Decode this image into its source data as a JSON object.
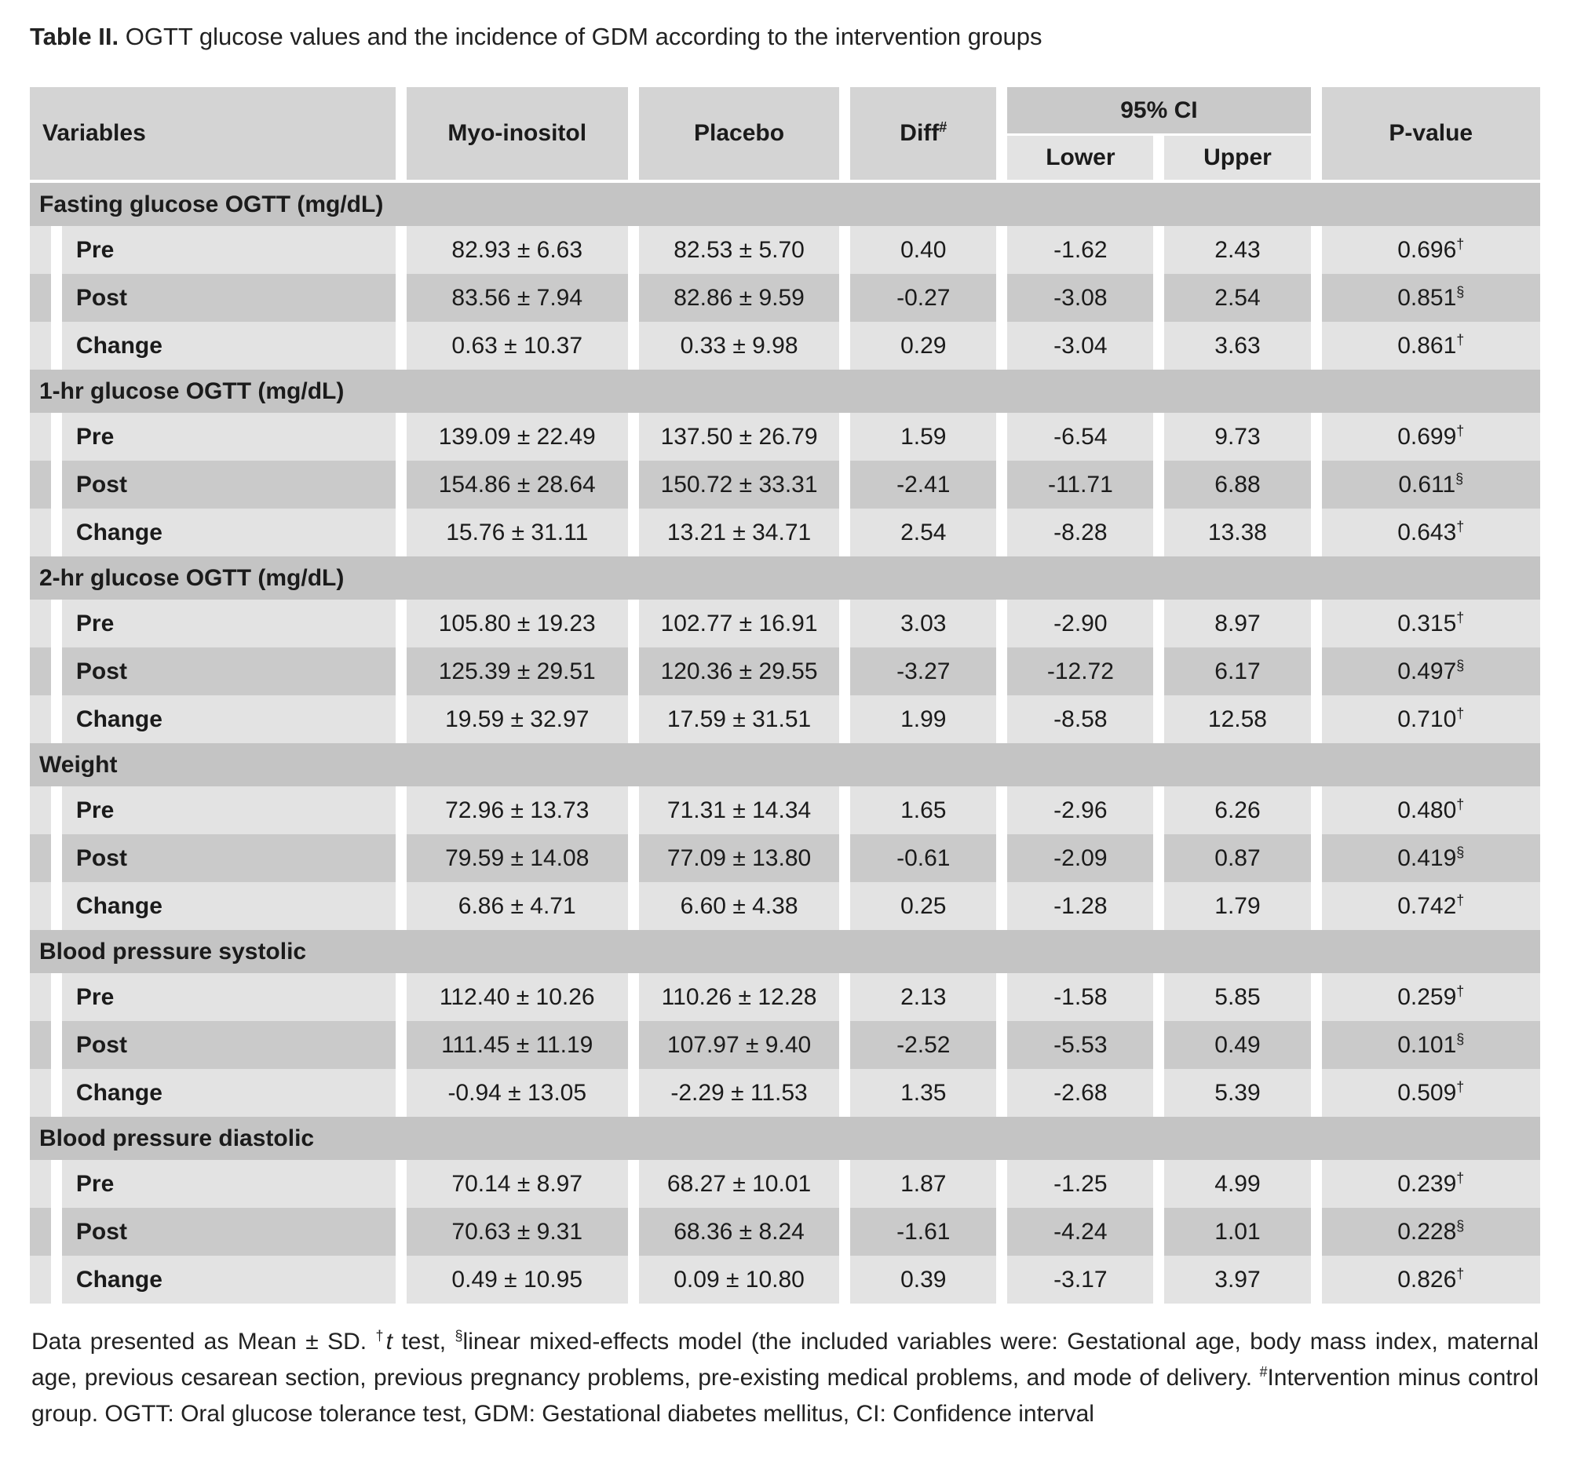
{
  "title": {
    "label": "Table II.",
    "text": " OGTT glucose values and the incidence of GDM according to the intervention groups"
  },
  "table": {
    "headers": {
      "variables": "Variables",
      "myo": "Myo-inositol",
      "placebo": "Placebo",
      "diff": "Diff",
      "diff_sup": "#",
      "ci": "95% CI",
      "lower": "Lower",
      "upper": "Upper",
      "pvalue": "P-value"
    },
    "sections": [
      {
        "name": "Fasting glucose OGTT (mg/dL)",
        "rows": [
          {
            "label": "Pre",
            "myo": "82.93 ± 6.63",
            "placebo": "82.53 ± 5.70",
            "diff": "0.40",
            "lower": "-1.62",
            "upper": "2.43",
            "p": "0.696",
            "p_sup": "†"
          },
          {
            "label": "Post",
            "myo": "83.56 ± 7.94",
            "placebo": "82.86 ± 9.59",
            "diff": "-0.27",
            "lower": "-3.08",
            "upper": "2.54",
            "p": "0.851",
            "p_sup": "§"
          },
          {
            "label": "Change",
            "myo": "0.63 ± 10.37",
            "placebo": "0.33 ± 9.98",
            "diff": "0.29",
            "lower": "-3.04",
            "upper": "3.63",
            "p": "0.861",
            "p_sup": "†"
          }
        ]
      },
      {
        "name": "1-hr glucose OGTT (mg/dL)",
        "rows": [
          {
            "label": "Pre",
            "myo": "139.09 ± 22.49",
            "placebo": "137.50 ± 26.79",
            "diff": "1.59",
            "lower": "-6.54",
            "upper": "9.73",
            "p": "0.699",
            "p_sup": "†"
          },
          {
            "label": "Post",
            "myo": "154.86 ± 28.64",
            "placebo": "150.72 ± 33.31",
            "diff": "-2.41",
            "lower": "-11.71",
            "upper": "6.88",
            "p": "0.611",
            "p_sup": "§"
          },
          {
            "label": "Change",
            "myo": "15.76 ± 31.11",
            "placebo": "13.21 ± 34.71",
            "diff": "2.54",
            "lower": "-8.28",
            "upper": "13.38",
            "p": "0.643",
            "p_sup": "†"
          }
        ]
      },
      {
        "name": "2-hr glucose OGTT (mg/dL)",
        "rows": [
          {
            "label": "Pre",
            "myo": "105.80 ± 19.23",
            "placebo": "102.77 ± 16.91",
            "diff": "3.03",
            "lower": "-2.90",
            "upper": "8.97",
            "p": "0.315",
            "p_sup": "†"
          },
          {
            "label": "Post",
            "myo": "125.39 ± 29.51",
            "placebo": "120.36 ± 29.55",
            "diff": "-3.27",
            "lower": "-12.72",
            "upper": "6.17",
            "p": "0.497",
            "p_sup": "§"
          },
          {
            "label": "Change",
            "myo": "19.59 ± 32.97",
            "placebo": "17.59 ± 31.51",
            "diff": "1.99",
            "lower": "-8.58",
            "upper": "12.58",
            "p": "0.710",
            "p_sup": "†"
          }
        ]
      },
      {
        "name": "Weight",
        "rows": [
          {
            "label": "Pre",
            "myo": "72.96 ± 13.73",
            "placebo": "71.31 ± 14.34",
            "diff": "1.65",
            "lower": "-2.96",
            "upper": "6.26",
            "p": "0.480",
            "p_sup": "†"
          },
          {
            "label": "Post",
            "myo": "79.59 ± 14.08",
            "placebo": "77.09 ± 13.80",
            "diff": "-0.61",
            "lower": "-2.09",
            "upper": "0.87",
            "p": "0.419",
            "p_sup": "§"
          },
          {
            "label": "Change",
            "myo": "6.86 ± 4.71",
            "placebo": "6.60 ± 4.38",
            "diff": "0.25",
            "lower": "-1.28",
            "upper": "1.79",
            "p": "0.742",
            "p_sup": "†"
          }
        ]
      },
      {
        "name": "Blood pressure systolic",
        "rows": [
          {
            "label": "Pre",
            "myo": "112.40 ± 10.26",
            "placebo": "110.26 ± 12.28",
            "diff": "2.13",
            "lower": "-1.58",
            "upper": "5.85",
            "p": "0.259",
            "p_sup": "†"
          },
          {
            "label": "Post",
            "myo": "111.45 ± 11.19",
            "placebo": "107.97 ± 9.40",
            "diff": "-2.52",
            "lower": "-5.53",
            "upper": "0.49",
            "p": "0.101",
            "p_sup": "§"
          },
          {
            "label": "Change",
            "myo": "-0.94 ± 13.05",
            "placebo": "-2.29 ± 11.53",
            "diff": "1.35",
            "lower": "-2.68",
            "upper": "5.39",
            "p": "0.509",
            "p_sup": "†"
          }
        ]
      },
      {
        "name": "Blood pressure diastolic",
        "rows": [
          {
            "label": "Pre",
            "myo": "70.14 ± 8.97",
            "placebo": "68.27 ± 10.01",
            "diff": "1.87",
            "lower": "-1.25",
            "upper": "4.99",
            "p": "0.239",
            "p_sup": "†"
          },
          {
            "label": "Post",
            "myo": "70.63 ± 9.31",
            "placebo": "68.36 ± 8.24",
            "diff": "-1.61",
            "lower": "-4.24",
            "upper": "1.01",
            "p": "0.228",
            "p_sup": "§"
          },
          {
            "label": "Change",
            "myo": "0.49 ± 10.95",
            "placebo": "0.09 ± 10.80",
            "diff": "0.39",
            "lower": "-3.17",
            "upper": "3.97",
            "p": "0.826",
            "p_sup": "†"
          }
        ]
      }
    ]
  },
  "footnote": {
    "segments": [
      {
        "text": "Data presented as Mean ± SD. "
      },
      {
        "sup": "†"
      },
      {
        "italic": "t"
      },
      {
        "text": " test, "
      },
      {
        "sup": "§"
      },
      {
        "text": "linear mixed-effects model (the included variables were: Gestational age, body mass index, maternal age, previous cesarean section, previous pregnancy problems, pre-existing medical problems, and mode of delivery. "
      },
      {
        "sup": "#"
      },
      {
        "text": "Intervention minus control group. OGTT: Oral glucose tolerance test, GDM: Gestational diabetes mellitus, CI: Confidence interval"
      }
    ]
  }
}
